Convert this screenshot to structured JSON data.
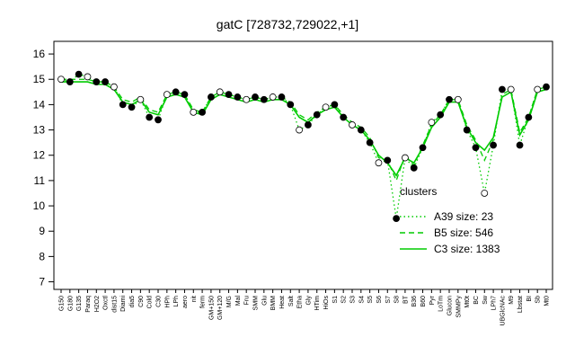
{
  "chart_data": {
    "type": "line",
    "title": "gatC [728732,729022,+1]",
    "categories": [
      "G150",
      "G180",
      "G135",
      "Paraq",
      "H2O2",
      "Oxctl",
      "dist15",
      "Diami",
      "dia5",
      "C90",
      "Cold",
      "C30",
      "HPh",
      "LPh",
      "aero",
      "nit",
      "ferm",
      "GM+150",
      "GM+120",
      "M/G",
      "Mal",
      "Fru",
      "SMM",
      "Glu",
      "BMM",
      "Heat",
      "Salt",
      "Etha",
      "Gly",
      "HTim",
      "HiOs",
      "S1",
      "S2",
      "S3",
      "S4",
      "S5",
      "S6",
      "S7",
      "S8",
      "BT",
      "B36",
      "B60",
      "Pyr",
      "LoTm",
      "Glucon",
      "SMMPy",
      "Mt0t",
      "BC",
      "Sw",
      "LPh7",
      "UBGlcNAc",
      "M9",
      "Lbstat",
      "BI",
      "Sb",
      "Mt0"
    ],
    "series": [
      {
        "name": "A39 size: 23",
        "color": "#00cc00",
        "dash": "dotted",
        "values": [
          15.0,
          14.9,
          15.2,
          15.1,
          14.9,
          14.9,
          14.7,
          14.0,
          13.9,
          14.2,
          13.5,
          13.4,
          14.4,
          14.5,
          14.4,
          13.7,
          13.7,
          14.3,
          14.5,
          14.4,
          14.3,
          14.2,
          14.3,
          14.2,
          14.3,
          14.3,
          14.0,
          13.0,
          13.2,
          13.6,
          13.9,
          14.0,
          13.5,
          13.2,
          13.0,
          12.5,
          11.7,
          11.8,
          9.5,
          11.9,
          11.5,
          12.3,
          13.3,
          13.6,
          14.2,
          14.2,
          13.0,
          12.3,
          10.5,
          12.4,
          14.6,
          14.6,
          12.4,
          13.5,
          14.6,
          14.7
        ]
      },
      {
        "name": "B5 size: 546",
        "color": "#00cc00",
        "dash": "dashed",
        "values": [
          15.0,
          15.0,
          15.0,
          15.0,
          14.9,
          14.9,
          14.7,
          14.2,
          14.1,
          14.3,
          13.8,
          13.7,
          14.4,
          14.5,
          14.4,
          13.8,
          13.7,
          14.3,
          14.5,
          14.4,
          14.3,
          14.2,
          14.3,
          14.2,
          14.3,
          14.3,
          14.1,
          13.6,
          13.4,
          13.7,
          13.9,
          14.0,
          13.6,
          13.3,
          13.1,
          12.7,
          11.9,
          11.8,
          11.0,
          12.0,
          11.6,
          12.4,
          13.2,
          13.6,
          14.2,
          14.2,
          13.2,
          12.6,
          11.8,
          12.6,
          14.4,
          14.6,
          12.9,
          13.5,
          14.6,
          14.7
        ]
      },
      {
        "name": "C3 size: 1383",
        "color": "#00cc00",
        "dash": "solid",
        "values": [
          14.9,
          14.9,
          14.9,
          14.9,
          14.8,
          14.8,
          14.6,
          14.1,
          14.0,
          14.2,
          13.7,
          13.6,
          14.3,
          14.4,
          14.3,
          13.7,
          13.6,
          14.2,
          14.4,
          14.3,
          14.2,
          14.1,
          14.2,
          14.1,
          14.2,
          14.2,
          14.0,
          13.5,
          13.3,
          13.6,
          13.8,
          13.9,
          13.5,
          13.2,
          13.0,
          12.6,
          12.0,
          11.7,
          11.2,
          11.9,
          11.7,
          12.3,
          13.1,
          13.5,
          14.1,
          14.1,
          13.1,
          12.5,
          12.2,
          12.7,
          14.3,
          14.5,
          12.8,
          13.4,
          14.5,
          14.6
        ]
      }
    ],
    "legend_title": "clusters",
    "legend": "right",
    "ylim": [
      6.7,
      16.5
    ],
    "yticks": [
      7,
      8,
      9,
      10,
      11,
      12,
      13,
      14,
      15,
      16
    ]
  }
}
